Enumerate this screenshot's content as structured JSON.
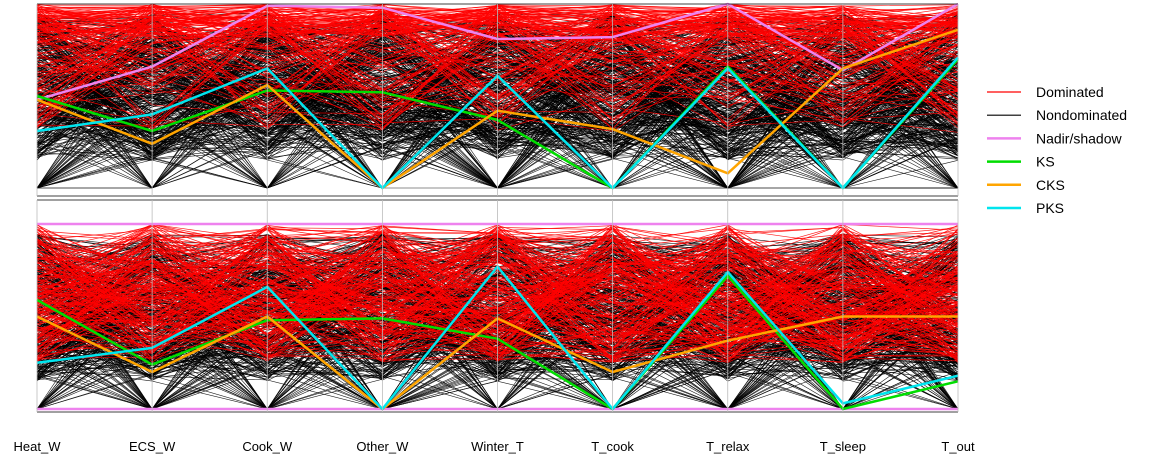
{
  "chart_data": {
    "type": "parallel_coordinates",
    "axes": [
      "Heat_W",
      "ECS_W",
      "Cook_W",
      "Other_W",
      "Winter_T",
      "T_cook",
      "T_relax",
      "T_sleep",
      "T_out"
    ],
    "legend": [
      {
        "name": "Dominated",
        "color": "#ff0000",
        "width": 1
      },
      {
        "name": "Nondominated",
        "color": "#000000",
        "width": 1
      },
      {
        "name": "Nadir/shadow",
        "color": "#ee82ee",
        "width": 2.5
      },
      {
        "name": "KS",
        "color": "#00dd00",
        "width": 2.5
      },
      {
        "name": "CKS",
        "color": "#ffa500",
        "width": 2.5
      },
      {
        "name": "PKS",
        "color": "#00e5ee",
        "width": 2.5
      }
    ],
    "legend_position": "right",
    "value_range": [
      0,
      1
    ],
    "panels": [
      {
        "highlighted_series": [
          {
            "name": "Nadir/shadow",
            "values": [
              0.48,
              0.66,
              0.99,
              0.98,
              0.81,
              0.82,
              1.0,
              0.64,
              1.0
            ]
          },
          {
            "name": "KS",
            "values": [
              0.5,
              0.31,
              0.53,
              0.52,
              0.37,
              0.0,
              0.66,
              0.0,
              0.7
            ]
          },
          {
            "name": "CKS",
            "values": [
              0.48,
              0.24,
              0.56,
              0.0,
              0.42,
              0.32,
              0.08,
              0.65,
              0.86
            ]
          },
          {
            "name": "PKS",
            "values": [
              0.31,
              0.4,
              0.65,
              0.0,
              0.61,
              0.0,
              0.65,
              0.0,
              0.71
            ]
          }
        ]
      },
      {
        "highlighted_series": [
          {
            "name": "Nadir/shadow",
            "values": [
              1.0,
              1.0,
              1.0,
              1.0,
              1.0,
              1.0,
              1.0,
              1.0,
              1.0
            ]
          },
          {
            "name": "Nadir/shadow",
            "values": [
              0.0,
              0.0,
              0.0,
              0.0,
              0.0,
              0.0,
              0.0,
              0.0,
              0.0
            ]
          },
          {
            "name": "KS",
            "values": [
              0.59,
              0.24,
              0.48,
              0.49,
              0.38,
              0.0,
              0.72,
              0.0,
              0.15
            ]
          },
          {
            "name": "CKS",
            "values": [
              0.5,
              0.2,
              0.5,
              0.0,
              0.49,
              0.2,
              0.37,
              0.5,
              0.5
            ]
          },
          {
            "name": "PKS",
            "values": [
              0.25,
              0.33,
              0.66,
              0.0,
              0.77,
              0.0,
              0.74,
              0.03,
              0.18
            ]
          }
        ]
      }
    ]
  }
}
